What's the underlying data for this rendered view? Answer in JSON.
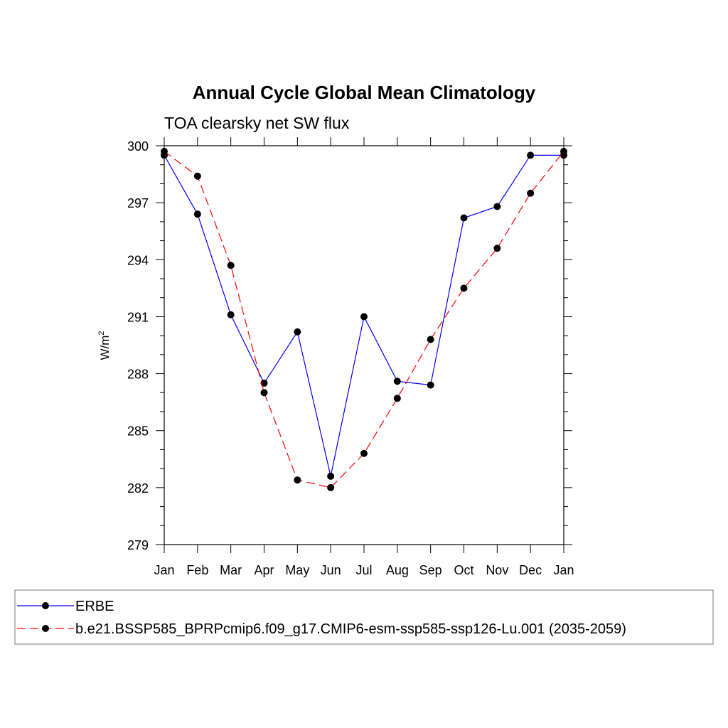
{
  "colors": {
    "series_1": "#0000ff",
    "series_2": "#ff0000",
    "marker": "#000000",
    "axis": "#000000",
    "background": "#ffffff"
  },
  "chart_data": {
    "type": "line",
    "title": "Annual Cycle Global Mean Climatology",
    "subtitle": "TOA clearsky net SW flux",
    "xlabel": "",
    "ylabel": "W/m",
    "ylabel_superscript": "2",
    "categories": [
      "Jan",
      "Feb",
      "Mar",
      "Apr",
      "May",
      "Jun",
      "Jul",
      "Aug",
      "Sep",
      "Oct",
      "Nov",
      "Dec",
      "Jan"
    ],
    "ylim": [
      279,
      300
    ],
    "yticks": [
      279,
      282,
      285,
      288,
      291,
      294,
      297,
      300
    ],
    "grid": false,
    "legend_position": "bottom",
    "series": [
      {
        "name": "ERBE",
        "style": "solid",
        "color": "#0000ff",
        "values": [
          299.5,
          296.4,
          291.1,
          287.5,
          290.2,
          282.6,
          291.0,
          287.6,
          287.4,
          296.2,
          296.8,
          299.5,
          299.5
        ]
      },
      {
        "name": "b.e21.BSSP585_BPRPcmip6.f09_g17.CMIP6-esm-ssp585-ssp126-Lu.001 (2035-2059)",
        "style": "dashed",
        "color": "#ff0000",
        "values": [
          299.7,
          298.4,
          293.7,
          287.0,
          282.4,
          282.0,
          283.8,
          286.7,
          289.8,
          292.5,
          294.6,
          297.5,
          299.7
        ]
      }
    ]
  }
}
